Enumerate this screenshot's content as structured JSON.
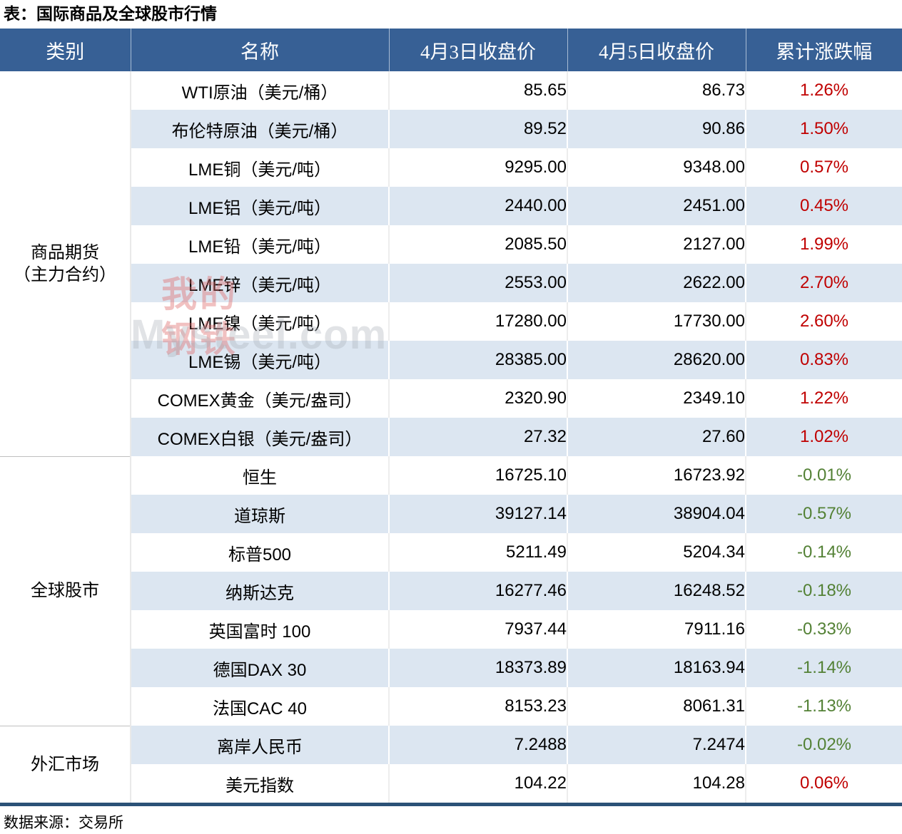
{
  "colors": {
    "header_bg": "#376095",
    "band_row_bg": "#DCE6F1",
    "up": "#C00000",
    "down": "#538135",
    "table_bottom_border": "#2B5277"
  },
  "watermark": {
    "cn_lines": "我的\n钢铁",
    "en": "Mysteel.com"
  },
  "chart_data": {
    "type": "table",
    "title": "表：国际商品及全球股市行情",
    "source": "数据来源：交易所",
    "columns": [
      "类别",
      "名称",
      "4月3日收盘价",
      "4月5日收盘价",
      "累计涨跌幅"
    ],
    "groups": [
      {
        "category_lines": [
          "商品期货",
          "（主力合约）"
        ],
        "rows": [
          {
            "name": "WTI原油（美元/桶）",
            "apr3": "85.65",
            "apr5": "86.73",
            "change": "1.26%",
            "direction": "up"
          },
          {
            "name": "布伦特原油（美元/桶）",
            "apr3": "89.52",
            "apr5": "90.86",
            "change": "1.50%",
            "direction": "up"
          },
          {
            "name": "LME铜（美元/吨）",
            "apr3": "9295.00",
            "apr5": "9348.00",
            "change": "0.57%",
            "direction": "up"
          },
          {
            "name": "LME铝（美元/吨）",
            "apr3": "2440.00",
            "apr5": "2451.00",
            "change": "0.45%",
            "direction": "up"
          },
          {
            "name": "LME铅（美元/吨）",
            "apr3": "2085.50",
            "apr5": "2127.00",
            "change": "1.99%",
            "direction": "up"
          },
          {
            "name": "LME锌（美元/吨）",
            "apr3": "2553.00",
            "apr5": "2622.00",
            "change": "2.70%",
            "direction": "up"
          },
          {
            "name": "LME镍（美元/吨）",
            "apr3": "17280.00",
            "apr5": "17730.00",
            "change": "2.60%",
            "direction": "up"
          },
          {
            "name": "LME锡（美元/吨）",
            "apr3": "28385.00",
            "apr5": "28620.00",
            "change": "0.83%",
            "direction": "up"
          },
          {
            "name": "COMEX黄金（美元/盎司）",
            "apr3": "2320.90",
            "apr5": "2349.10",
            "change": "1.22%",
            "direction": "up"
          },
          {
            "name": "COMEX白银（美元/盎司）",
            "apr3": "27.32",
            "apr5": "27.60",
            "change": "1.02%",
            "direction": "up"
          }
        ]
      },
      {
        "category_lines": [
          "全球股市"
        ],
        "rows": [
          {
            "name": "恒生",
            "apr3": "16725.10",
            "apr5": "16723.92",
            "change": "-0.01%",
            "direction": "down"
          },
          {
            "name": "道琼斯",
            "apr3": "39127.14",
            "apr5": "38904.04",
            "change": "-0.57%",
            "direction": "down"
          },
          {
            "name": "标普500",
            "apr3": "5211.49",
            "apr5": "5204.34",
            "change": "-0.14%",
            "direction": "down"
          },
          {
            "name": "纳斯达克",
            "apr3": "16277.46",
            "apr5": "16248.52",
            "change": "-0.18%",
            "direction": "down"
          },
          {
            "name": "英国富时 100",
            "apr3": "7937.44",
            "apr5": "7911.16",
            "change": "-0.33%",
            "direction": "down"
          },
          {
            "name": "德国DAX 30",
            "apr3": "18373.89",
            "apr5": "18163.94",
            "change": "-1.14%",
            "direction": "down"
          },
          {
            "name": "法国CAC 40",
            "apr3": "8153.23",
            "apr5": "8061.31",
            "change": "-1.13%",
            "direction": "down"
          }
        ]
      },
      {
        "category_lines": [
          "外汇市场"
        ],
        "rows": [
          {
            "name": "离岸人民币",
            "apr3": "7.2488",
            "apr5": "7.2474",
            "change": "-0.02%",
            "direction": "down"
          },
          {
            "name": "美元指数",
            "apr3": "104.22",
            "apr5": "104.28",
            "change": "0.06%",
            "direction": "up"
          }
        ]
      }
    ]
  }
}
